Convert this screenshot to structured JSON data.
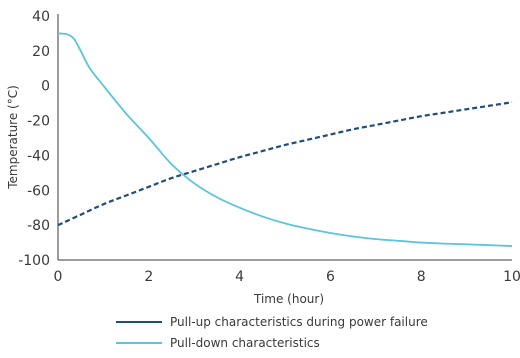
{
  "chart_data": {
    "type": "line",
    "xlabel": "Time (hour)",
    "ylabel": "Temperature (°C)",
    "xlim": [
      0,
      10
    ],
    "ylim": [
      -100,
      40
    ],
    "xticks": [
      0,
      2,
      4,
      6,
      8,
      10
    ],
    "yticks": [
      40,
      20,
      0,
      -20,
      -40,
      -60,
      -80,
      -100
    ],
    "grid": false,
    "legend_position": "bottom",
    "series": [
      {
        "name": "Pull-up characteristics during power failure",
        "line_style": "dashed",
        "color": "#1f4e79",
        "x": [
          0,
          0.5,
          1,
          1.5,
          2,
          2.5,
          3,
          3.5,
          4,
          4.5,
          5,
          5.5,
          6,
          6.5,
          7,
          7.5,
          8,
          8.5,
          9,
          9.5,
          10
        ],
        "y": [
          -80,
          -74,
          -68,
          -63,
          -58,
          -53,
          -49,
          -45,
          -41,
          -37.5,
          -34,
          -31,
          -28,
          -25,
          -22.5,
          -20,
          -17.5,
          -15.5,
          -13.5,
          -11.5,
          -9.5
        ]
      },
      {
        "name": "Pull-down characteristics",
        "line_style": "solid",
        "color": "#5bc4df",
        "x": [
          0,
          0.2,
          0.35,
          0.5,
          0.7,
          1,
          1.5,
          2,
          2.5,
          3,
          3.5,
          4,
          4.5,
          5,
          5.5,
          6,
          6.5,
          7,
          7.5,
          8,
          8.5,
          9,
          9.5,
          10
        ],
        "y": [
          30,
          29.5,
          27,
          20,
          10,
          0,
          -16,
          -30,
          -45,
          -56,
          -64,
          -70,
          -75,
          -79,
          -82,
          -84.5,
          -86.5,
          -88,
          -89,
          -90,
          -90.6,
          -91,
          -91.5,
          -92
        ]
      }
    ]
  }
}
